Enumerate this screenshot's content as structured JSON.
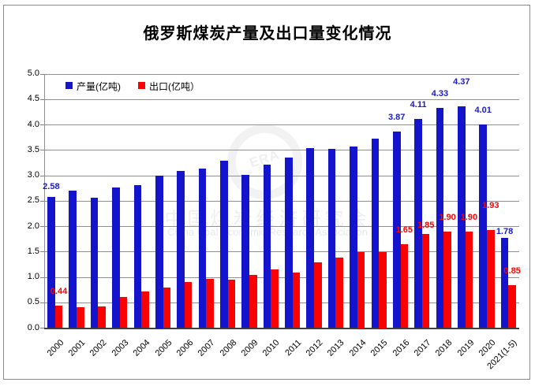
{
  "title": "俄罗斯煤炭产量及出口量变化情况",
  "legend": {
    "production_label": "产量(亿吨)",
    "export_label": "出口(亿吨）"
  },
  "watermark": {
    "logo_text": "ERA",
    "cn": "中国煤炭经济研究会",
    "en": "China Coal Economic Research Association"
  },
  "colors": {
    "production": "#1414cc",
    "export": "#fa0202",
    "production_value_label": "#1a1ad2",
    "export_value_label": "#fb0404",
    "grid": "#909090",
    "axis": "#3f3f3f",
    "frame": "#8a8a8a"
  },
  "chart_data": {
    "type": "bar",
    "title": "俄罗斯煤炭产量及出口量变化情况",
    "categories": [
      "2000",
      "2001",
      "2002",
      "2003",
      "2004",
      "2005",
      "2006",
      "2007",
      "2008",
      "2009",
      "2010",
      "2011",
      "2012",
      "2013",
      "2014",
      "2015",
      "2016",
      "2017",
      "2018",
      "2019",
      "2020",
      "2021(1-5)"
    ],
    "series": [
      {
        "name": "产量(亿吨)",
        "color_key": "production",
        "values": [
          2.58,
          2.7,
          2.56,
          2.77,
          2.82,
          3.0,
          3.1,
          3.14,
          3.29,
          3.01,
          3.22,
          3.36,
          3.55,
          3.52,
          3.58,
          3.73,
          3.87,
          4.11,
          4.33,
          4.37,
          4.01,
          1.78
        ],
        "labeled_indices": [
          0,
          16,
          17,
          18,
          19,
          20,
          21
        ],
        "shown_labels": [
          "2.58",
          "3.87",
          "4.11",
          "4.33",
          "4.37",
          "4.01",
          "1.78"
        ]
      },
      {
        "name": "出口(亿吨）",
        "color_key": "export",
        "values": [
          0.44,
          0.41,
          0.43,
          0.61,
          0.72,
          0.8,
          0.91,
          0.97,
          0.96,
          1.05,
          1.15,
          1.1,
          1.3,
          1.38,
          1.5,
          1.5,
          1.65,
          1.85,
          1.9,
          1.9,
          1.93,
          0.85
        ],
        "labeled_indices": [
          0,
          16,
          17,
          18,
          19,
          20,
          21
        ],
        "shown_labels": [
          "0.44",
          "1.65",
          "1.85",
          "1.90",
          "1.90",
          "1.93",
          "0.85"
        ]
      }
    ],
    "ylim": [
      0,
      5
    ],
    "ytick_step": 0.5,
    "ytick_labels": [
      "0.0",
      "0.5",
      "1.0",
      "1.5",
      "2.0",
      "2.5",
      "3.0",
      "3.5",
      "4.0",
      "4.5",
      "5.0"
    ],
    "grid": true,
    "legend_position": "top-left-inside-plot"
  }
}
